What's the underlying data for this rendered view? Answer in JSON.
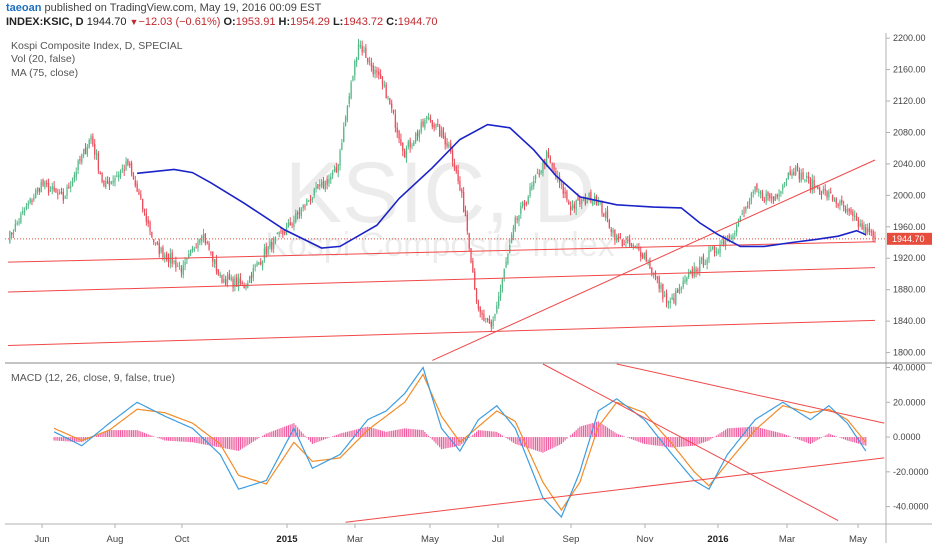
{
  "header": {
    "user": "taeoan",
    "published_text": "published on TradingView.com, May 19, 2016 00:09 EST",
    "symbol": "INDEX:KSIC, D",
    "last": "1944.70",
    "change_arrow": "▼",
    "change": "−12.03 (−0.61%)",
    "open_label": "O:",
    "open": "1953.91",
    "high_label": "H:",
    "high": "1954.29",
    "low_label": "L:",
    "low": "1943.72",
    "close_label": "C:",
    "close": "1944.70"
  },
  "colors": {
    "up": "#53b987",
    "down": "#eb4d5c",
    "ma": "#1a23c8",
    "trendline": "#f04848",
    "macd": "#3d9de0",
    "signal": "#f28c28",
    "hist": "#f060a0",
    "price_tag": "#e74c3c",
    "axis": "#b0b0b0"
  },
  "chart_data": [
    {
      "type": "candlestick",
      "title": "Kospi Composite Index, D, SPECIAL",
      "indicators": [
        "Vol (20, false)",
        "MA (75, close)"
      ],
      "watermark": "KSIC, D",
      "watermark_sub": "Kospi Composite Index",
      "x_ticks": [
        "Jun",
        "Aug",
        "Oct",
        "2015",
        "Mar",
        "May",
        "Jul",
        "Sep",
        "Nov",
        "2016",
        "Mar",
        "May"
      ],
      "y_ticks": [
        "2200.00",
        "2160.00",
        "2120.00",
        "2080.00",
        "2040.00",
        "2000.00",
        "1960.00",
        "1920.00",
        "1880.00",
        "1840.00",
        "1800.00"
      ],
      "ylim": [
        1788,
        2204
      ],
      "last_price_label": "1944.70",
      "last_price": 1944.7,
      "ohlc_anchor_index": [
        0,
        18,
        30,
        45,
        52,
        65,
        80,
        95,
        105,
        115,
        128,
        140,
        152,
        165,
        178,
        190,
        205,
        215,
        228,
        240,
        248,
        255,
        262,
        275,
        292,
        305,
        318,
        330,
        345,
        358,
        372,
        385,
        395,
        405,
        415,
        425,
        435,
        448,
        460,
        470
      ],
      "close_anchors": [
        1945,
        2015,
        1995,
        2075,
        2010,
        2040,
        1935,
        1905,
        1955,
        1895,
        1885,
        1930,
        1960,
        2000,
        2030,
        2195,
        2130,
        2055,
        2100,
        2060,
        1975,
        1850,
        1830,
        1965,
        2050,
        1985,
        2000,
        1945,
        1925,
        1860,
        1905,
        1935,
        1960,
        2005,
        1995,
        2035,
        2015,
        1995,
        1965,
        1944.7
      ],
      "ma": [
        [
          70,
          2028
        ],
        [
          90,
          2033
        ],
        [
          100,
          2029
        ],
        [
          110,
          2016
        ],
        [
          128,
          1990
        ],
        [
          150,
          1956
        ],
        [
          170,
          1933
        ],
        [
          180,
          1935
        ],
        [
          200,
          1962
        ],
        [
          212,
          1996
        ],
        [
          230,
          2035
        ],
        [
          245,
          2071
        ],
        [
          260,
          2090
        ],
        [
          272,
          2086
        ],
        [
          285,
          2058
        ],
        [
          297,
          2025
        ],
        [
          310,
          1998
        ],
        [
          330,
          1988
        ],
        [
          350,
          1985
        ],
        [
          365,
          1984
        ],
        [
          375,
          1965
        ],
        [
          385,
          1950
        ],
        [
          397,
          1935
        ],
        [
          410,
          1935
        ],
        [
          425,
          1940
        ],
        [
          438,
          1944
        ],
        [
          450,
          1948
        ],
        [
          460,
          1955
        ],
        [
          465,
          1950
        ]
      ],
      "trendlines": [
        [
          [
            0,
            1915
          ],
          [
            470,
            1941
          ]
        ],
        [
          [
            0,
            1877
          ],
          [
            470,
            1908
          ]
        ],
        [
          [
            0,
            1809
          ],
          [
            470,
            1841
          ]
        ],
        [
          [
            230,
            1790
          ],
          [
            470,
            2045
          ]
        ]
      ]
    },
    {
      "type": "line",
      "title": "MACD (12, 26, close, 9, false, true)",
      "y_ticks": [
        "40.0000",
        "20.0000",
        "0.0000",
        "-20.0000",
        "-40.0000"
      ],
      "ylim": [
        -50,
        42
      ],
      "series": [
        {
          "role": "macd",
          "x": [
            25,
            40,
            55,
            70,
            85,
            100,
            115,
            125,
            140,
            155,
            165,
            180,
            195,
            205,
            215,
            225,
            235,
            245,
            255,
            265,
            275,
            290,
            300,
            310,
            320,
            330,
            345,
            360,
            372,
            380,
            390,
            405,
            420,
            435,
            445,
            455,
            465
          ],
          "values": [
            3,
            -5,
            8,
            20,
            12,
            5,
            -10,
            -30,
            -25,
            5,
            -18,
            -10,
            10,
            15,
            25,
            40,
            5,
            -8,
            10,
            18,
            5,
            -35,
            -46,
            -20,
            15,
            22,
            10,
            -10,
            -25,
            -30,
            -10,
            10,
            20,
            10,
            18,
            8,
            -8
          ]
        },
        {
          "role": "signal",
          "x": [
            25,
            40,
            55,
            70,
            85,
            100,
            115,
            125,
            140,
            155,
            165,
            180,
            195,
            205,
            215,
            225,
            235,
            245,
            255,
            265,
            275,
            290,
            300,
            310,
            320,
            330,
            345,
            360,
            372,
            380,
            390,
            405,
            420,
            435,
            445,
            455,
            465
          ],
          "values": [
            5,
            -2,
            4,
            16,
            14,
            8,
            -4,
            -22,
            -27,
            -3,
            -14,
            -12,
            4,
            12,
            20,
            36,
            12,
            -3,
            6,
            15,
            9,
            -26,
            -42,
            -26,
            6,
            20,
            14,
            -4,
            -20,
            -28,
            -15,
            4,
            18,
            14,
            16,
            10,
            -3
          ]
        },
        {
          "role": "histogram",
          "x": [
            25,
            40,
            55,
            70,
            85,
            100,
            115,
            125,
            140,
            155,
            165,
            180,
            195,
            205,
            215,
            225,
            235,
            245,
            255,
            265,
            275,
            290,
            300,
            310,
            320,
            330,
            345,
            360,
            372,
            380,
            390,
            405,
            420,
            435,
            445,
            455,
            465
          ],
          "values": [
            -2,
            -3,
            4,
            4,
            -2,
            -3,
            -6,
            -8,
            2,
            8,
            -4,
            2,
            6,
            3,
            5,
            4,
            -7,
            -5,
            4,
            3,
            -4,
            -9,
            -4,
            6,
            9,
            2,
            -4,
            -6,
            -5,
            -2,
            5,
            6,
            2,
            -4,
            2,
            -2,
            -5
          ]
        }
      ],
      "trendlines": [
        [
          [
            290,
            42
          ],
          [
            450,
            -48
          ]
        ],
        [
          [
            330,
            42
          ],
          [
            475,
            8
          ]
        ],
        [
          [
            183,
            -49
          ],
          [
            475,
            -12
          ]
        ]
      ]
    }
  ]
}
